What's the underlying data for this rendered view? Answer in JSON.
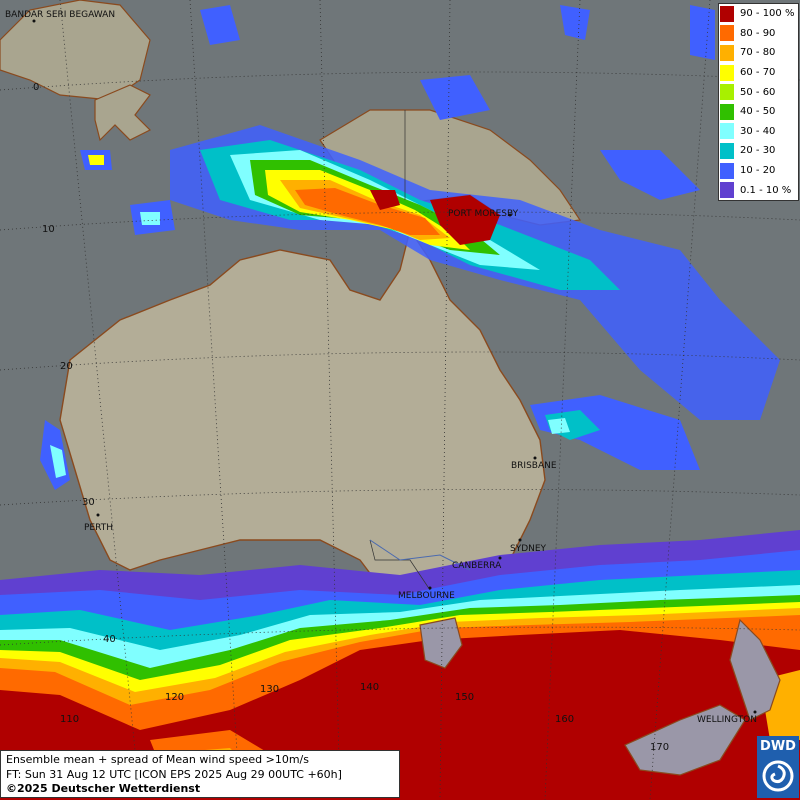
{
  "legend": {
    "items": [
      {
        "label": "90 - 100 %",
        "color": "#b00000"
      },
      {
        "label": "80 - 90",
        "color": "#ff6a00"
      },
      {
        "label": "70 - 80",
        "color": "#ffb000"
      },
      {
        "label": "60 - 70",
        "color": "#ffff00"
      },
      {
        "label": "50 - 60",
        "color": "#a8f000"
      },
      {
        "label": "40 - 50",
        "color": "#30c000"
      },
      {
        "label": "30 - 40",
        "color": "#80ffff"
      },
      {
        "label": "20 - 30",
        "color": "#00c0c8"
      },
      {
        "label": "10 - 20",
        "color": "#4060ff"
      },
      {
        "label": "0.1 - 10 %",
        "color": "#6040d0"
      }
    ]
  },
  "places": {
    "bandar": "BANDAR SERI BEGAWAN",
    "port_moresby": "PORT MORESBY",
    "brisbane": "BRISBANE",
    "perth": "PERTH",
    "sydney": "SYDNEY",
    "canberra": "CANBERRA",
    "melbourne": "MELBOURNE",
    "wellington": "WELLINGTON"
  },
  "grid_labels": {
    "lat_0": "0",
    "lat_10": "10",
    "lat_20": "20",
    "lat_30": "30",
    "lat_40": "40",
    "lon_120": "120",
    "lon_130": "130",
    "lon_140": "140",
    "lon_150": "150",
    "lon_160": "160",
    "lon_170": "170",
    "lon_110": "110"
  },
  "info": {
    "line1": "Ensemble mean + spread of Mean wind speed >10m/s",
    "line2": "FT: Sun 31 Aug 12 UTC [ICON EPS 2025 Aug 29 00UTC +60h]",
    "line3": "©2025 Deutscher Wetterdienst"
  },
  "logo": {
    "text": "DWD"
  },
  "colors": {
    "ocean": "#6f7679",
    "land": "#b3ad97",
    "coast": "#8a4a1e"
  }
}
